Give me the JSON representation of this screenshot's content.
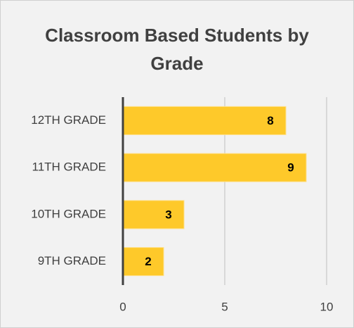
{
  "chart_data": {
    "type": "bar",
    "orientation": "horizontal",
    "title": "Classroom Based Students by Grade",
    "categories": [
      "12TH GRADE",
      "11TH GRADE",
      "10TH GRADE",
      "9TH GRADE"
    ],
    "values": [
      8,
      9,
      3,
      2
    ],
    "color": "#fec92a",
    "xlim": [
      0,
      10
    ],
    "xticks": [
      0,
      5,
      10
    ],
    "grid": true
  }
}
